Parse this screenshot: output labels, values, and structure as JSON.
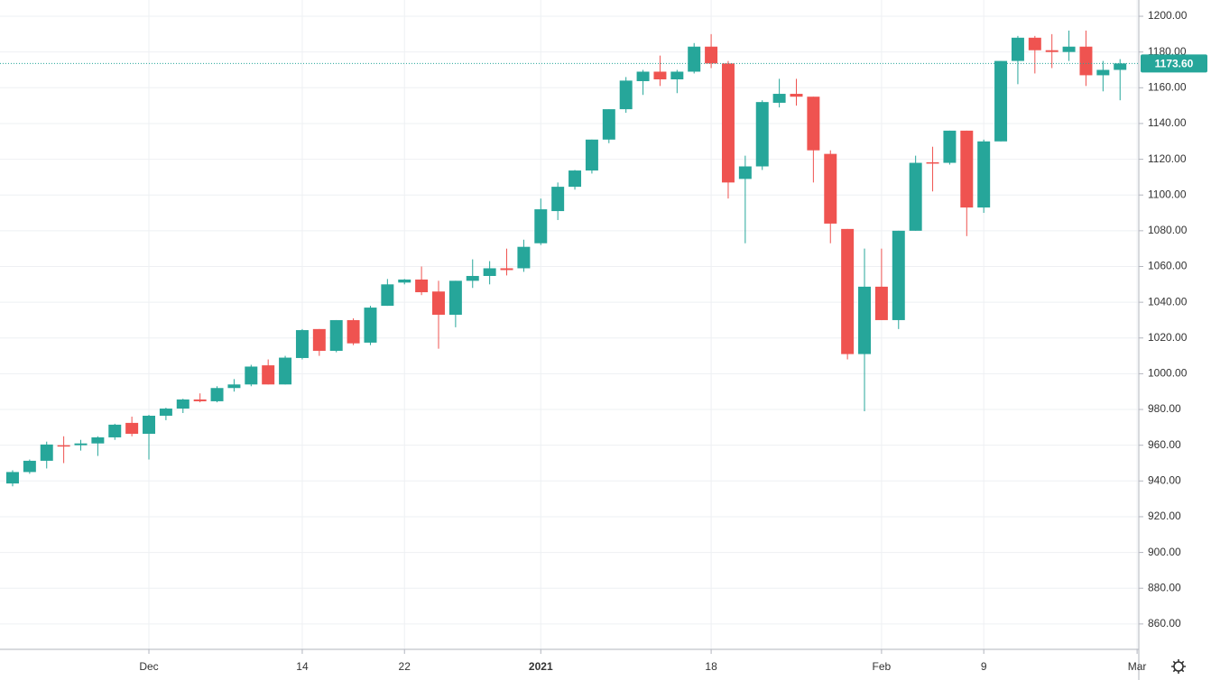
{
  "chart_data": {
    "type": "candlestick",
    "open": [
      938.6,
      945,
      951.3,
      960,
      960,
      961,
      964.4,
      972.5,
      966.4,
      976.5,
      980.5,
      985.6,
      984.6,
      992,
      994,
      1004.7,
      994,
      1008.8,
      1025,
      1012.8,
      1030,
      1017.4,
      1038,
      1051,
      1052.7,
      1046,
      1033,
      1052,
      1054.7,
      1059,
      1059,
      1073,
      1091,
      1104.6,
      1113.7,
      1131,
      1148,
      1163.7,
      1169,
      1164.7,
      1169,
      1183,
      1173.6,
      1109,
      1116,
      1151.6,
      1156.6,
      1155,
      1123,
      1081,
      1011,
      1048.7,
      1030,
      1080,
      1118.3,
      1118,
      1136,
      1093,
      1130,
      1175,
      1188,
      1181,
      1180,
      1183,
      1167,
      1170
    ],
    "high": [
      946,
      952,
      962,
      965,
      963,
      965,
      972,
      976,
      977,
      981,
      986,
      989,
      993,
      997,
      1005,
      1008,
      1010,
      1025,
      1025,
      1030,
      1031,
      1038,
      1053,
      1053,
      1060,
      1052,
      1052,
      1064,
      1063,
      1070,
      1075,
      1098,
      1107,
      1114,
      1131,
      1148,
      1166,
      1170,
      1178,
      1170,
      1185,
      1190,
      1175,
      1122,
      1153,
      1165,
      1165,
      1155,
      1125,
      1081,
      1070,
      1070,
      1080,
      1122,
      1127,
      1136,
      1136,
      1131,
      1175,
      1189,
      1189,
      1190,
      1192,
      1192,
      1175,
      1176
    ],
    "low": [
      937,
      944,
      947,
      950,
      957,
      954,
      963,
      965,
      952,
      974,
      978,
      984,
      984,
      990,
      993,
      994,
      994,
      1008,
      1010,
      1012,
      1016,
      1016,
      1038,
      1050,
      1044,
      1014,
      1026,
      1048,
      1050,
      1055,
      1057,
      1072,
      1086,
      1103,
      1112,
      1129,
      1146,
      1156,
      1161,
      1157,
      1168,
      1171,
      1098,
      1073,
      1114,
      1149,
      1150,
      1107,
      1073,
      1008,
      979,
      1030,
      1025,
      1080,
      1102,
      1117,
      1077,
      1090,
      1130,
      1162,
      1168,
      1171,
      1175,
      1161,
      1158,
      1153
    ],
    "close": [
      945,
      951.3,
      960.4,
      959.5,
      961,
      964.4,
      971.5,
      966.4,
      976.5,
      980.5,
      985.6,
      984.6,
      992,
      994,
      1004,
      994,
      1009,
      1024.4,
      1012.8,
      1030,
      1017,
      1037,
      1050,
      1052.7,
      1045.6,
      1033,
      1052,
      1054.7,
      1059,
      1058,
      1071,
      1092,
      1104.6,
      1113.7,
      1131,
      1148,
      1164,
      1169,
      1164.7,
      1169,
      1183,
      1173.6,
      1107,
      1116,
      1152,
      1156.6,
      1155,
      1125,
      1084,
      1011,
      1048.7,
      1030,
      1080,
      1118,
      1117.8,
      1136,
      1093,
      1130,
      1175,
      1188,
      1181,
      1180,
      1183,
      1167,
      1170,
      1173.6
    ],
    "up_color": "#26a69a",
    "down_color": "#ef5350",
    "ylim": [
      845.8,
      1209.1
    ],
    "yticks": [
      {
        "value": 860,
        "label": "860.00"
      },
      {
        "value": 880,
        "label": "880.00"
      },
      {
        "value": 900,
        "label": "900.00"
      },
      {
        "value": 920,
        "label": "920.00"
      },
      {
        "value": 940,
        "label": "940.00"
      },
      {
        "value": 960,
        "label": "960.00"
      },
      {
        "value": 980,
        "label": "980.00"
      },
      {
        "value": 1000,
        "label": "1000.00"
      },
      {
        "value": 1020,
        "label": "1020.00"
      },
      {
        "value": 1040,
        "label": "1040.00"
      },
      {
        "value": 1060,
        "label": "1060.00"
      },
      {
        "value": 1080,
        "label": "1080.00"
      },
      {
        "value": 1100,
        "label": "1100.00"
      },
      {
        "value": 1120,
        "label": "1120.00"
      },
      {
        "value": 1140,
        "label": "1140.00"
      },
      {
        "value": 1160,
        "label": "1160.00"
      },
      {
        "value": 1180,
        "label": "1180.00"
      },
      {
        "value": 1200,
        "label": "1200.00"
      }
    ],
    "xlim": [
      -0.74,
      66.1
    ],
    "xticks": [
      {
        "value": 8,
        "label": "Dec"
      },
      {
        "value": 17,
        "label": "14"
      },
      {
        "value": 23,
        "label": "22"
      },
      {
        "value": 31,
        "label": "2021"
      },
      {
        "value": 41,
        "label": "18"
      },
      {
        "value": 51,
        "label": "Feb"
      },
      {
        "value": 57,
        "label": "9"
      },
      {
        "value": 66,
        "label": "Mar"
      }
    ],
    "bold_xtick": 3,
    "grid": true,
    "last_price": {
      "value": 1173.6,
      "label": "1173.60"
    }
  }
}
